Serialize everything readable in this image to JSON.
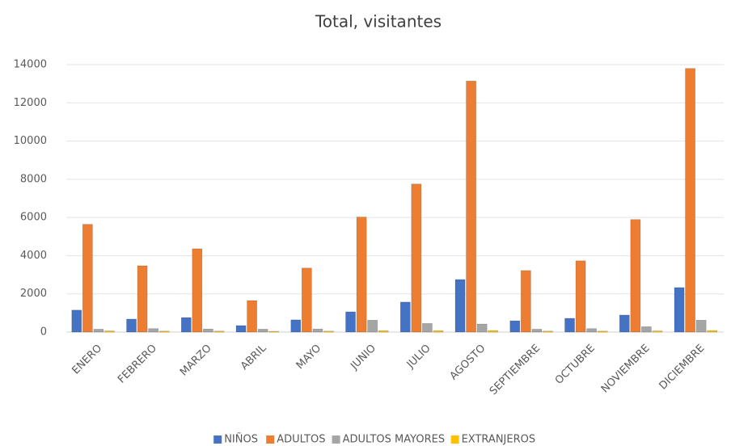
{
  "chart_data": {
    "type": "bar",
    "title": "Total, visitantes",
    "categories": [
      "ENERO",
      "FEBRERO",
      "MARZO",
      "ABRIL",
      "MAYO",
      "JUNIO",
      "JULIO",
      "AGOSTO",
      "SEPTIEMBRE",
      "OCTUBRE",
      "NOVIEMBRE",
      "DICIEMBRE"
    ],
    "series": [
      {
        "name": "NIÑOS",
        "color": "#4472c4",
        "values": [
          1150,
          680,
          760,
          340,
          640,
          1060,
          1570,
          2750,
          590,
          720,
          890,
          2330
        ]
      },
      {
        "name": "ADULTOS",
        "color": "#ed7d31",
        "values": [
          5640,
          3470,
          4360,
          1650,
          3350,
          6020,
          7750,
          13140,
          3220,
          3730,
          5890,
          13800
        ]
      },
      {
        "name": "ADULTOS MAYORES",
        "color": "#a5a5a5",
        "values": [
          150,
          180,
          160,
          150,
          160,
          620,
          450,
          420,
          150,
          180,
          280,
          620
        ]
      },
      {
        "name": "EXTRANJEROS",
        "color": "#ffc000",
        "values": [
          60,
          50,
          50,
          40,
          50,
          70,
          70,
          80,
          50,
          50,
          60,
          80
        ]
      }
    ],
    "ylim": [
      0,
      14000
    ],
    "yticks": [
      0,
      2000,
      4000,
      6000,
      8000,
      10000,
      12000,
      14000
    ],
    "grid": true,
    "legend": "bottom"
  }
}
